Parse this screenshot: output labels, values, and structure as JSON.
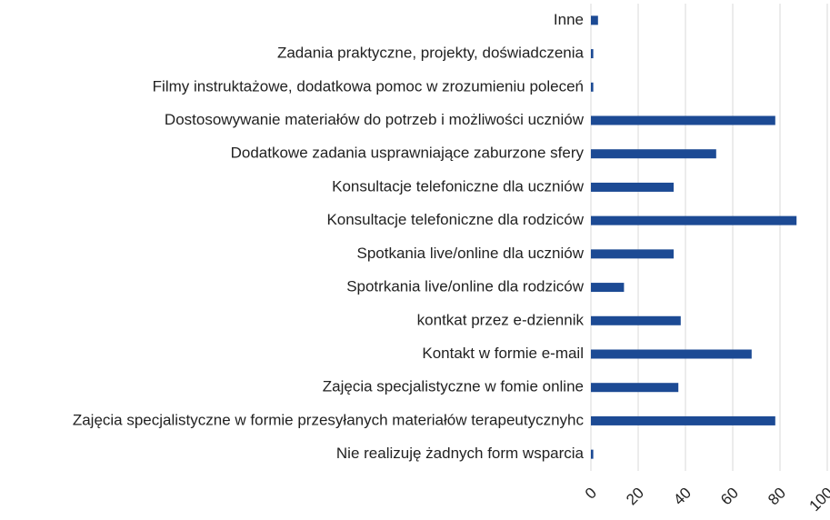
{
  "chart_data": {
    "type": "barh",
    "categories": [
      "Inne",
      "Zadania praktyczne, projekty, doświadczenia",
      "Filmy instruktażowe, dodatkowa pomoc w zrozumieniu poleceń",
      "Dostosowywanie materiałów do potrzeb i możliwości uczniów",
      "Dodatkowe zadania usprawniające zaburzone sfery",
      "Konsultacje telefoniczne dla uczniów",
      "Konsultacje telefoniczne dla rodziców",
      "Spotkania live/online dla uczniów",
      "Spotrkania live/online dla rodziców",
      "kontkat przez e-dziennik",
      "Kontakt w formie e-mail",
      "Zajęcia specjalistyczne w fomie online",
      "Zajęcia specjalistyczne w formie przesyłanych materiałów terapeutycznyhc",
      "Nie realizuję żadnych form wsparcia"
    ],
    "values": [
      3,
      1,
      1,
      78,
      53,
      35,
      87,
      35,
      14,
      38,
      68,
      37,
      78,
      1
    ],
    "color": "#1c4a94",
    "xlim": [
      0,
      100
    ],
    "xticks": [
      0,
      20,
      40,
      60,
      80,
      100
    ],
    "grid": true
  }
}
